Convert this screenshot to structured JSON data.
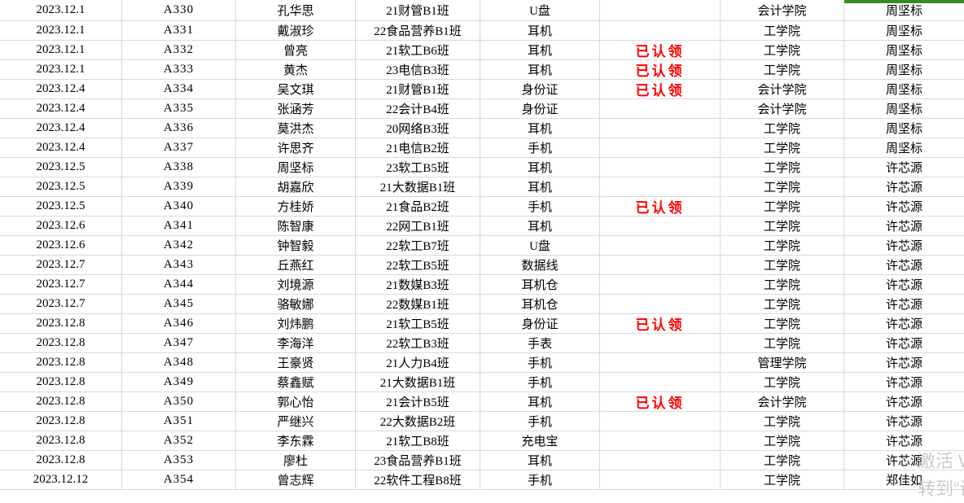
{
  "colors": {
    "grid_line": "#d9d9d9",
    "claimed_red": "#fe0000",
    "selection_green": "#3a8a24",
    "watermark_gray": "#bfbfbf"
  },
  "watermark": {
    "line1": "激活 W",
    "line2": "转到“设"
  },
  "table": {
    "claimed_label": "已认领",
    "rows": [
      {
        "date": "2023.12.1",
        "id": "A330",
        "name": "孔华思",
        "class": "21财管B1班",
        "item": "U盘",
        "status": "",
        "college": "会计学院",
        "handler": "周坚标"
      },
      {
        "date": "2023.12.1",
        "id": "A331",
        "name": "戴淑珍",
        "class": "22食品营养B1班",
        "item": "耳机",
        "status": "",
        "college": "工学院",
        "handler": "周坚标"
      },
      {
        "date": "2023.12.1",
        "id": "A332",
        "name": "曾亮",
        "class": "21软工B6班",
        "item": "耳机",
        "status": "已认领",
        "college": "工学院",
        "handler": "周坚标"
      },
      {
        "date": "2023.12.1",
        "id": "A333",
        "name": "黄杰",
        "class": "23电信B3班",
        "item": "耳机",
        "status": "已认领",
        "college": "工学院",
        "handler": "周坚标"
      },
      {
        "date": "2023.12.4",
        "id": "A334",
        "name": "吴文琪",
        "class": "21财管B1班",
        "item": "身份证",
        "status": "已认领",
        "college": "会计学院",
        "handler": "周坚标"
      },
      {
        "date": "2023.12.4",
        "id": "A335",
        "name": "张涵芳",
        "class": "22会计B4班",
        "item": "身份证",
        "status": "",
        "college": "会计学院",
        "handler": "周坚标"
      },
      {
        "date": "2023.12.4",
        "id": "A336",
        "name": "莫洪杰",
        "class": "20网络B3班",
        "item": "耳机",
        "status": "",
        "college": "工学院",
        "handler": "周坚标"
      },
      {
        "date": "2023.12.4",
        "id": "A337",
        "name": "许思齐",
        "class": "21电信B2班",
        "item": "手机",
        "status": "",
        "college": "工学院",
        "handler": "周坚标"
      },
      {
        "date": "2023.12.5",
        "id": "A338",
        "name": "周坚标",
        "class": "23软工B5班",
        "item": "耳机",
        "status": "",
        "college": "工学院",
        "handler": "许芯源"
      },
      {
        "date": "2023.12.5",
        "id": "A339",
        "name": "胡嘉欣",
        "class": "21大数据B1班",
        "item": "耳机",
        "status": "",
        "college": "工学院",
        "handler": "许芯源"
      },
      {
        "date": "2023.12.5",
        "id": "A340",
        "name": "方桂娇",
        "class": "21食品B2班",
        "item": "手机",
        "status": "已认领",
        "college": "工学院",
        "handler": "许芯源"
      },
      {
        "date": "2023.12.6",
        "id": "A341",
        "name": "陈智康",
        "class": "22网工B1班",
        "item": "耳机",
        "status": "",
        "college": "工学院",
        "handler": "许芯源"
      },
      {
        "date": "2023.12.6",
        "id": "A342",
        "name": "钟智毅",
        "class": "22软工B7班",
        "item": "U盘",
        "status": "",
        "college": "工学院",
        "handler": "许芯源"
      },
      {
        "date": "2023.12.7",
        "id": "A343",
        "name": "丘燕红",
        "class": "22软工B5班",
        "item": "数据线",
        "status": "",
        "college": "工学院",
        "handler": "许芯源"
      },
      {
        "date": "2023.12.7",
        "id": "A344",
        "name": "刘境源",
        "class": "21数媒B3班",
        "item": "耳机仓",
        "status": "",
        "college": "工学院",
        "handler": "许芯源"
      },
      {
        "date": "2023.12.7",
        "id": "A345",
        "name": "骆敏娜",
        "class": "22数媒B1班",
        "item": "耳机仓",
        "status": "",
        "college": "工学院",
        "handler": "许芯源"
      },
      {
        "date": "2023.12.8",
        "id": "A346",
        "name": "刘炜鹏",
        "class": "21软工B5班",
        "item": "身份证",
        "status": "已认领",
        "college": "工学院",
        "handler": "许芯源"
      },
      {
        "date": "2023.12.8",
        "id": "A347",
        "name": "李海洋",
        "class": "22软工B3班",
        "item": "手表",
        "status": "",
        "college": "工学院",
        "handler": "许芯源"
      },
      {
        "date": "2023.12.8",
        "id": "A348",
        "name": "王豪贤",
        "class": "21人力B4班",
        "item": "手机",
        "status": "",
        "college": "管理学院",
        "handler": "许芯源"
      },
      {
        "date": "2023.12.8",
        "id": "A349",
        "name": "蔡鑫赋",
        "class": "21大数据B1班",
        "item": "手机",
        "status": "",
        "college": "工学院",
        "handler": "许芯源"
      },
      {
        "date": "2023.12.8",
        "id": "A350",
        "name": "郭心怡",
        "class": "21会计B5班",
        "item": "耳机",
        "status": "已认领",
        "college": "会计学院",
        "handler": "许芯源"
      },
      {
        "date": "2023.12.8",
        "id": "A351",
        "name": "严继兴",
        "class": "22大数据B2班",
        "item": "手机",
        "status": "",
        "college": "工学院",
        "handler": "许芯源"
      },
      {
        "date": "2023.12.8",
        "id": "A352",
        "name": "李东霖",
        "class": "21软工B8班",
        "item": "充电宝",
        "status": "",
        "college": "工学院",
        "handler": "许芯源"
      },
      {
        "date": "2023.12.8",
        "id": "A353",
        "name": "廖杜",
        "class": "23食品营养B1班",
        "item": "耳机",
        "status": "",
        "college": "工学院",
        "handler": "许芯源"
      },
      {
        "date": "2023.12.12",
        "id": "A354",
        "name": "曾志辉",
        "class": "22软件工程B8班",
        "item": "手机",
        "status": "",
        "college": "工学院",
        "handler": "郑佳如"
      }
    ]
  }
}
